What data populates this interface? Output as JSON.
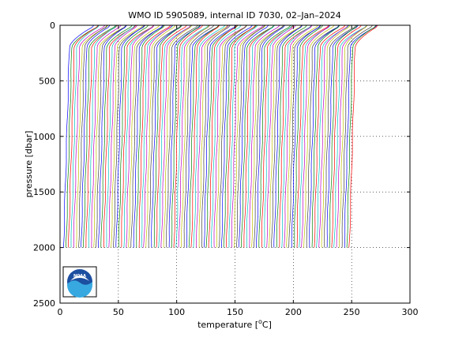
{
  "chart_data": {
    "type": "line",
    "title": "WMO ID 5905089, internal ID 7030, 02–Jan–2024",
    "xlabel_main": "temperature [",
    "xlabel_sup": "o",
    "xlabel_tail": "C]",
    "ylabel": "pressure [dbar]",
    "xlim": [
      0,
      300
    ],
    "ylim": [
      0,
      2500
    ],
    "y_reversed": true,
    "grid": "dotted",
    "xticks": [
      0,
      50,
      100,
      150,
      200,
      250,
      300
    ],
    "yticks": [
      0,
      500,
      1000,
      1500,
      2000,
      2500
    ],
    "series_description": "Stacked temperature profiles (each profile offset horizontally), ~ 115 profiles from 0 to 2000 dbar",
    "profile_count": 115,
    "first_profile_bottom_temp": 3,
    "last_profile_bottom_temp": 248,
    "surface_offset": 26,
    "thermocline_depth_dbar": 200,
    "profile_depth_dbar": 2000,
    "colors": [
      "#0000ff",
      "#008000",
      "#ff0000",
      "#00bfbf",
      "#bf00bf",
      "#bfbf00",
      "#404040"
    ]
  },
  "logo": {
    "text": "NOAA",
    "colors": {
      "blue": "#1c4fa0",
      "lightblue": "#38a9e0",
      "white": "#ffffff"
    }
  }
}
